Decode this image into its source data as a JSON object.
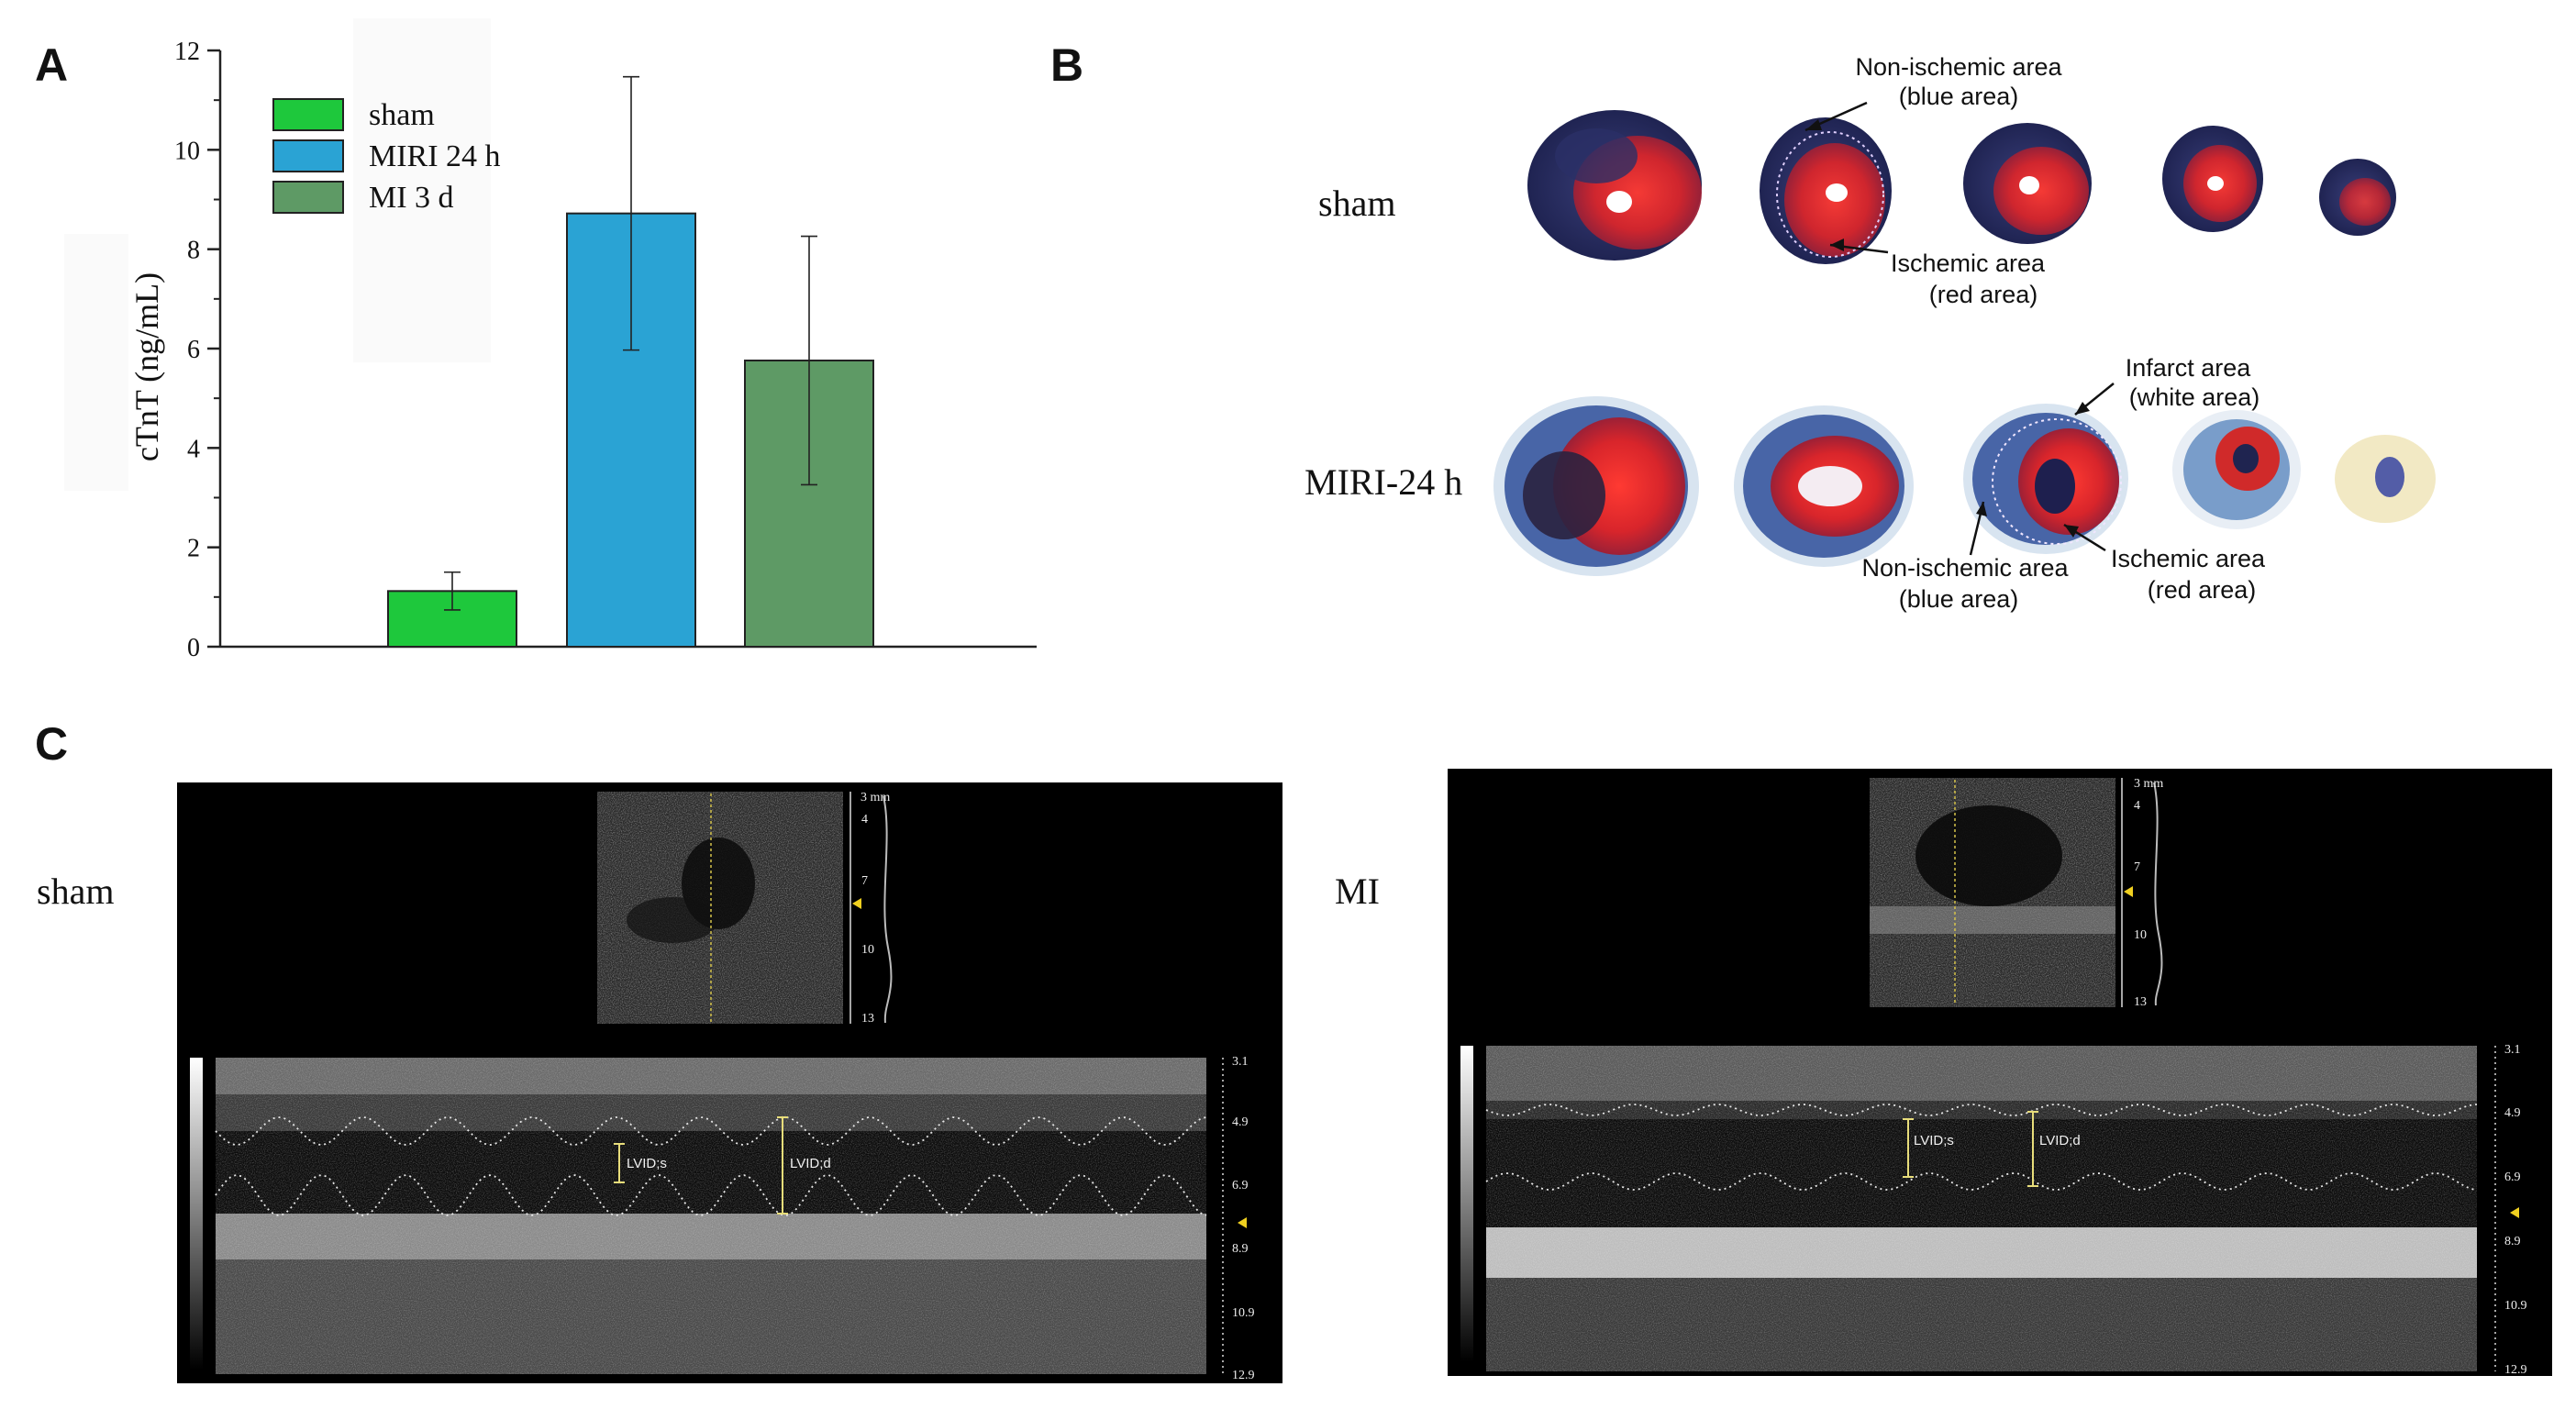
{
  "panels": {
    "a": {
      "letter": "A"
    },
    "b": {
      "letter": "B"
    },
    "c": {
      "letter": "C"
    }
  },
  "chart_data": {
    "type": "bar",
    "categories": [
      "sham",
      "MIRI 24 h",
      "MI 3 d"
    ],
    "values": [
      1.12,
      8.72,
      5.76
    ],
    "errors": [
      0.38,
      2.75,
      2.5
    ],
    "colors": [
      "#1ec83c",
      "#2aa3d4",
      "#5e9a65"
    ],
    "legend": [
      "sham",
      "MIRI 24 h",
      "MI 3 d"
    ],
    "legend_position": "top-left",
    "ylabel": "cTnT (ng/mL)",
    "xlabel": "",
    "ylim": [
      0,
      12
    ],
    "yticks": [
      "0",
      "2",
      "4",
      "6",
      "8",
      "10",
      "12"
    ],
    "grid": false
  },
  "staining": {
    "rows": [
      {
        "label": "sham"
      },
      {
        "label": "MIRI-24 h"
      }
    ],
    "annotations": {
      "sham_nonischemic": [
        "Non-ischemic area",
        "(blue area)"
      ],
      "sham_ischemic": [
        "Ischemic area",
        "(red area)"
      ],
      "miri_infarct": [
        "Infarct area",
        "(white area)"
      ],
      "miri_nonischemic": [
        "Non-ischemic area",
        "(blue area)"
      ],
      "miri_ischemic": [
        "Ischemic area",
        "(red area)"
      ]
    }
  },
  "echo": {
    "left": {
      "group": "sham",
      "bmode_scale_unit": "3 mm",
      "bmode_ticks": [
        "4",
        "7",
        "10",
        "13"
      ],
      "mmode_ticks": [
        "3.1",
        "4.9",
        "6.9",
        "8.9",
        "10.9",
        "12.9"
      ],
      "measure_labels": [
        "LVID;s",
        "LVID;d"
      ]
    },
    "right": {
      "group": "MI",
      "bmode_scale_unit": "3 mm",
      "bmode_ticks": [
        "4",
        "7",
        "10",
        "13"
      ],
      "mmode_ticks": [
        "3.1",
        "4.9",
        "6.9",
        "8.9",
        "10.9",
        "12.9"
      ],
      "measure_labels": [
        "LVID;s",
        "LVID;d"
      ]
    }
  }
}
